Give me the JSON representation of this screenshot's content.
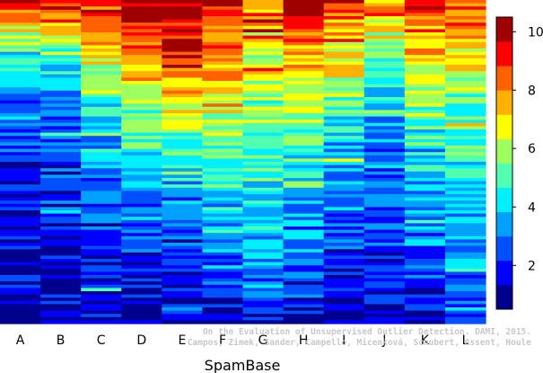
{
  "chart_data": {
    "type": "heatmap",
    "title": "",
    "xlabel": "SpamBase",
    "ylabel": "",
    "columns": [
      "A",
      "B",
      "C",
      "D",
      "E",
      "F",
      "G",
      "H",
      "I",
      "J",
      "K",
      "L"
    ],
    "n_rows": 100,
    "column_rank_profiles": [
      {
        "column": "A",
        "levels": [
          [
            0.0,
            9.5
          ],
          [
            0.08,
            7.0
          ],
          [
            0.16,
            4.5
          ],
          [
            0.3,
            3.2
          ],
          [
            0.45,
            2.5
          ],
          [
            0.6,
            1.9
          ],
          [
            0.8,
            1.4
          ],
          [
            1.0,
            1.0
          ]
        ]
      },
      {
        "column": "B",
        "levels": [
          [
            0.0,
            9.2
          ],
          [
            0.08,
            7.0
          ],
          [
            0.16,
            4.6
          ],
          [
            0.3,
            3.3
          ],
          [
            0.45,
            2.6
          ],
          [
            0.6,
            2.0
          ],
          [
            0.8,
            1.4
          ],
          [
            1.0,
            1.0
          ]
        ]
      },
      {
        "column": "C",
        "levels": [
          [
            0.0,
            9.3
          ],
          [
            0.1,
            7.8
          ],
          [
            0.25,
            5.8
          ],
          [
            0.4,
            4.0
          ],
          [
            0.55,
            3.0
          ],
          [
            0.75,
            2.1
          ],
          [
            0.9,
            1.4
          ],
          [
            1.0,
            1.0
          ]
        ]
      },
      {
        "column": "D",
        "levels": [
          [
            0.0,
            10.2
          ],
          [
            0.1,
            8.8
          ],
          [
            0.25,
            6.8
          ],
          [
            0.4,
            5.2
          ],
          [
            0.55,
            3.8
          ],
          [
            0.75,
            2.5
          ],
          [
            0.9,
            1.5
          ],
          [
            1.0,
            1.0
          ]
        ]
      },
      {
        "column": "E",
        "levels": [
          [
            0.0,
            9.8
          ],
          [
            0.15,
            9.5
          ],
          [
            0.28,
            7.5
          ],
          [
            0.4,
            5.6
          ],
          [
            0.55,
            3.8
          ],
          [
            0.75,
            2.4
          ],
          [
            0.9,
            1.5
          ],
          [
            1.0,
            1.0
          ]
        ]
      },
      {
        "column": "F",
        "levels": [
          [
            0.0,
            9.5
          ],
          [
            0.1,
            8.8
          ],
          [
            0.25,
            7.2
          ],
          [
            0.4,
            5.8
          ],
          [
            0.55,
            4.6
          ],
          [
            0.7,
            3.8
          ],
          [
            0.88,
            2.4
          ],
          [
            1.0,
            1.2
          ]
        ]
      },
      {
        "column": "G",
        "levels": [
          [
            0.0,
            9.0
          ],
          [
            0.15,
            6.5
          ],
          [
            0.3,
            5.6
          ],
          [
            0.5,
            4.8
          ],
          [
            0.7,
            4.0
          ],
          [
            0.85,
            3.2
          ],
          [
            0.95,
            2.6
          ],
          [
            1.0,
            1.4
          ]
        ]
      },
      {
        "column": "H",
        "levels": [
          [
            0.0,
            9.8
          ],
          [
            0.1,
            8.5
          ],
          [
            0.25,
            6.8
          ],
          [
            0.45,
            5.0
          ],
          [
            0.65,
            3.6
          ],
          [
            0.85,
            2.6
          ],
          [
            0.95,
            1.8
          ],
          [
            1.0,
            1.0
          ]
        ]
      },
      {
        "column": "I",
        "levels": [
          [
            0.0,
            9.0
          ],
          [
            0.2,
            6.5
          ],
          [
            0.35,
            4.8
          ],
          [
            0.5,
            3.5
          ],
          [
            0.65,
            2.8
          ],
          [
            0.8,
            2.0
          ],
          [
            0.92,
            1.5
          ],
          [
            1.0,
            1.0
          ]
        ]
      },
      {
        "column": "J",
        "levels": [
          [
            0.0,
            8.0
          ],
          [
            0.15,
            5.8
          ],
          [
            0.3,
            4.0
          ],
          [
            0.5,
            3.0
          ],
          [
            0.7,
            2.5
          ],
          [
            0.85,
            2.0
          ],
          [
            0.95,
            1.6
          ],
          [
            1.0,
            1.0
          ]
        ]
      },
      {
        "column": "K",
        "levels": [
          [
            0.0,
            8.8
          ],
          [
            0.15,
            7.2
          ],
          [
            0.3,
            5.6
          ],
          [
            0.5,
            4.2
          ],
          [
            0.7,
            3.2
          ],
          [
            0.85,
            2.4
          ],
          [
            0.95,
            1.8
          ],
          [
            1.0,
            1.0
          ]
        ]
      },
      {
        "column": "L",
        "levels": [
          [
            0.0,
            9.0
          ],
          [
            0.15,
            7.0
          ],
          [
            0.3,
            5.4
          ],
          [
            0.5,
            4.6
          ],
          [
            0.7,
            3.8
          ],
          [
            0.85,
            2.8
          ],
          [
            0.95,
            2.2
          ],
          [
            1.0,
            1.3
          ]
        ]
      }
    ],
    "colorbar": {
      "min": 0.5,
      "max": 10.5,
      "ticks": [
        2,
        4,
        6,
        8,
        10
      ],
      "colors": [
        "#00008f",
        "#0000ff",
        "#0050ff",
        "#00a0ff",
        "#00f0ff",
        "#50ffaf",
        "#a0ff60",
        "#ffff00",
        "#ffb000",
        "#ff6000",
        "#ff0000",
        "#9f0000"
      ]
    },
    "grid": false,
    "legend": "colorbar-right"
  },
  "credit": {
    "line1": "On the Evaluation of Unsupervised Outlier Detection. DAMI, 2015.",
    "line2": "Campos, Zimek, Sander, Campello, Micenková, Schubert, Assent, Houle"
  }
}
